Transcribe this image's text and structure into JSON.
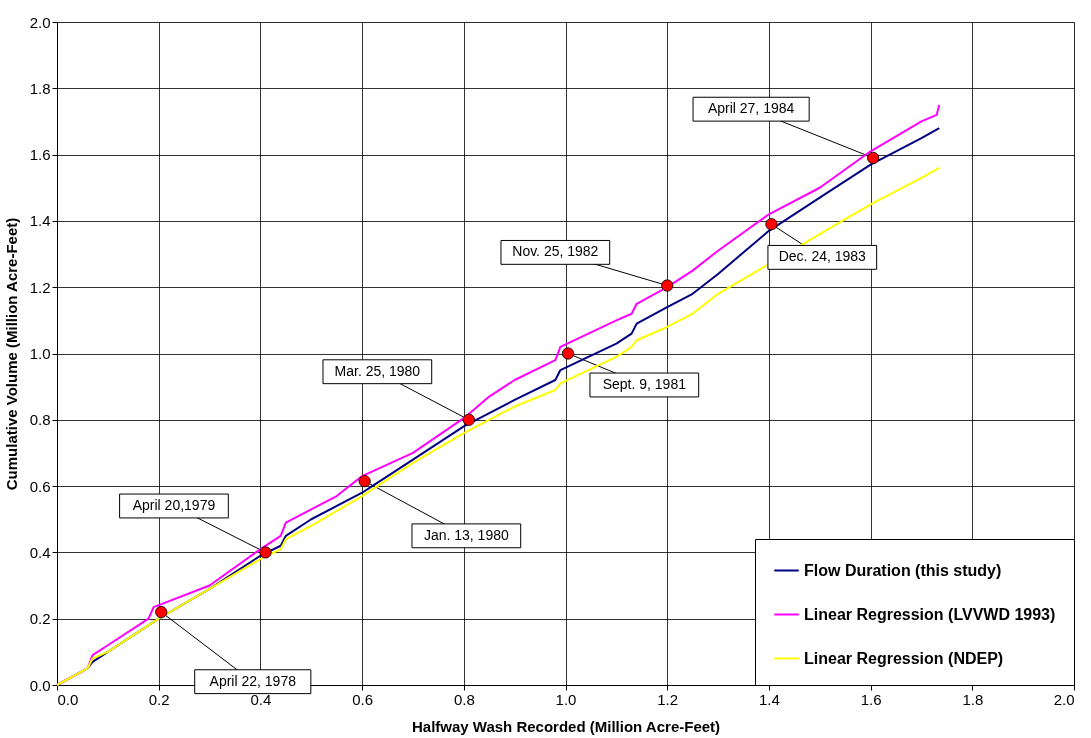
{
  "chart_data": {
    "type": "line",
    "xlabel": "Halfway Wash Recorded (Million Acre-Feet)",
    "ylabel": "Cumulative Volume (Million Acre-Feet)",
    "xlim": [
      0,
      2.0
    ],
    "ylim": [
      0,
      2.0
    ],
    "xticks": [
      {
        "value": 0,
        "label": "0.0"
      },
      {
        "value": 0.2,
        "label": "0.2"
      },
      {
        "value": 0.4,
        "label": "0.4"
      },
      {
        "value": 0.6,
        "label": "0.6"
      },
      {
        "value": 0.8,
        "label": "0.8"
      },
      {
        "value": 1.0,
        "label": "1.0"
      },
      {
        "value": 1.2,
        "label": "1.2"
      },
      {
        "value": 1.4,
        "label": "1.4"
      },
      {
        "value": 1.6,
        "label": "1.6"
      },
      {
        "value": 1.8,
        "label": "1.8"
      },
      {
        "value": 2.0,
        "label": "2.0"
      }
    ],
    "yticks": [
      {
        "value": 0,
        "label": "0.0"
      },
      {
        "value": 0.2,
        "label": "0.2"
      },
      {
        "value": 0.4,
        "label": "0.4"
      },
      {
        "value": 0.6,
        "label": "0.6"
      },
      {
        "value": 0.8,
        "label": "0.8"
      },
      {
        "value": 1.0,
        "label": "1.0"
      },
      {
        "value": 1.2,
        "label": "1.2"
      },
      {
        "value": 1.4,
        "label": "1.4"
      },
      {
        "value": 1.6,
        "label": "1.6"
      },
      {
        "value": 1.8,
        "label": "1.8"
      },
      {
        "value": 2.0,
        "label": "2.0"
      }
    ],
    "grid": true,
    "legend": "bottom right",
    "line_style": "solid",
    "series": [
      {
        "name": "Flow Duration (this study)",
        "color": "#000080",
        "x": [
          0,
          0.06,
          0.07,
          0.1,
          0.2,
          0.3,
          0.4,
          0.44,
          0.45,
          0.5,
          0.6,
          0.62,
          0.7,
          0.8,
          0.9,
          0.98,
          0.99,
          1.1,
          1.13,
          1.14,
          1.2,
          1.25,
          1.3,
          1.4,
          1.5,
          1.6,
          1.7,
          1.735
        ],
        "values": [
          0,
          0.05,
          0.07,
          0.1,
          0.2,
          0.29,
          0.39,
          0.42,
          0.45,
          0.5,
          0.58,
          0.6,
          0.68,
          0.78,
          0.86,
          0.92,
          0.95,
          1.03,
          1.06,
          1.09,
          1.14,
          1.18,
          1.24,
          1.37,
          1.47,
          1.57,
          1.65,
          1.68
        ]
      },
      {
        "name": "Linear Regression (LVVWD 1993)",
        "color": "#ff00ff",
        "x": [
          0,
          0.06,
          0.07,
          0.1,
          0.18,
          0.19,
          0.3,
          0.4,
          0.44,
          0.45,
          0.5,
          0.55,
          0.6,
          0.7,
          0.8,
          0.85,
          0.9,
          0.98,
          0.99,
          1.1,
          1.13,
          1.14,
          1.2,
          1.25,
          1.3,
          1.4,
          1.5,
          1.6,
          1.7,
          1.73,
          1.735
        ],
        "values": [
          0,
          0.05,
          0.09,
          0.12,
          0.2,
          0.235,
          0.3,
          0.41,
          0.45,
          0.49,
          0.53,
          0.57,
          0.63,
          0.7,
          0.805,
          0.87,
          0.92,
          0.98,
          1.02,
          1.1,
          1.12,
          1.15,
          1.2,
          1.25,
          1.31,
          1.42,
          1.5,
          1.61,
          1.7,
          1.72,
          1.75
        ]
      },
      {
        "name": "Linear Regression (NDEP)",
        "color": "#ffff00",
        "x": [
          0,
          0.06,
          0.07,
          0.1,
          0.2,
          0.3,
          0.4,
          0.44,
          0.45,
          0.5,
          0.6,
          0.62,
          0.7,
          0.8,
          0.9,
          0.98,
          0.99,
          1.1,
          1.13,
          1.14,
          1.2,
          1.25,
          1.3,
          1.4,
          1.5,
          1.6,
          1.7,
          1.735
        ],
        "values": [
          0,
          0.05,
          0.08,
          0.1,
          0.2,
          0.29,
          0.38,
          0.41,
          0.44,
          0.48,
          0.57,
          0.59,
          0.67,
          0.76,
          0.84,
          0.89,
          0.91,
          0.99,
          1.02,
          1.04,
          1.08,
          1.12,
          1.18,
          1.27,
          1.36,
          1.45,
          1.53,
          1.56
        ]
      },
      {
        "type": "scatter",
        "marker": "circle",
        "color": "#ff0000",
        "x": [
          0.205,
          0.41,
          0.605,
          0.81,
          1.005,
          1.2,
          1.405,
          1.605
        ],
        "values": [
          0.22,
          0.4,
          0.615,
          0.8,
          1.0,
          1.205,
          1.39,
          1.59
        ]
      }
    ],
    "annotations": [
      {
        "text": "April 22, 1978",
        "x": 0.205,
        "y": 0.22
      },
      {
        "text": "April 20,1979",
        "x": 0.41,
        "y": 0.4
      },
      {
        "text": "Jan. 13, 1980",
        "x": 0.605,
        "y": 0.615
      },
      {
        "text": "Mar. 25, 1980",
        "x": 0.81,
        "y": 0.8
      },
      {
        "text": "Sept. 9, 1981",
        "x": 1.005,
        "y": 1.0
      },
      {
        "text": "Nov. 25, 1982",
        "x": 1.2,
        "y": 1.205
      },
      {
        "text": "Dec. 24, 1983",
        "x": 1.405,
        "y": 1.39
      },
      {
        "text": "April 27, 1984",
        "x": 1.605,
        "y": 1.59
      }
    ]
  }
}
